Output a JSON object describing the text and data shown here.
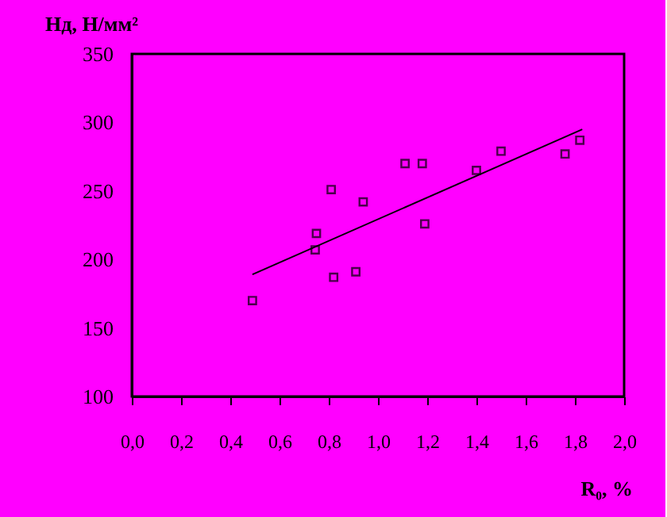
{
  "chart_data": {
    "type": "scatter",
    "xlabel": "R₀, %",
    "ylabel": "Hд, Н/мм²",
    "series": [
      {
        "color": "#000000",
        "marker": "square",
        "x": [
          0.49,
          0.745,
          0.75,
          0.81,
          0.82,
          0.91,
          0.94,
          1.11,
          1.18,
          1.19,
          1.4,
          1.5,
          1.76,
          1.82
        ],
        "values": [
          170,
          207,
          219,
          251,
          187,
          191,
          242,
          270,
          270,
          226,
          265,
          279,
          277,
          287
        ]
      },
      {
        "type": "line",
        "color": "#000000",
        "line_style": "solid",
        "x": [
          0.49,
          1.83
        ],
        "values": [
          189,
          295
        ]
      }
    ],
    "xlim": [
      0,
      2
    ],
    "xticks": [
      {
        "value": 0,
        "label": "0,0"
      },
      {
        "value": 0.2,
        "label": "0,2"
      },
      {
        "value": 0.4,
        "label": "0,4"
      },
      {
        "value": 0.6,
        "label": "0,6"
      },
      {
        "value": 0.8,
        "label": "0,8"
      },
      {
        "value": 1,
        "label": "1,0"
      },
      {
        "value": 1.2,
        "label": "1,2"
      },
      {
        "value": 1.4,
        "label": "1,4"
      },
      {
        "value": 1.6,
        "label": "1,6"
      },
      {
        "value": 1.8,
        "label": "1,8"
      },
      {
        "value": 2,
        "label": "2,0"
      }
    ],
    "ylim": [
      100,
      350
    ],
    "yticks": [
      100,
      150,
      200,
      250,
      300,
      350
    ],
    "grid": false
  }
}
